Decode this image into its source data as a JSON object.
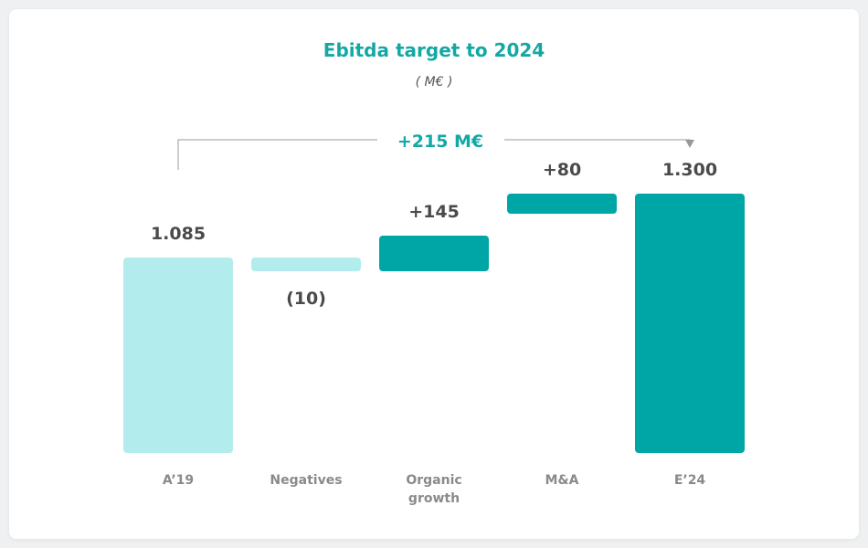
{
  "chart_data": {
    "type": "bar",
    "subtype": "waterfall",
    "title": "Ebitda target to 2024",
    "subtitle": "( M€ )",
    "total_change_label": "+215 M€",
    "categories": [
      "A’19",
      "Negatives",
      "Organic growth",
      "M&A",
      "E’24"
    ],
    "category_label_lines": [
      [
        "A’19"
      ],
      [
        "Negatives"
      ],
      [
        "Organic",
        "growth"
      ],
      [
        "M&A"
      ],
      [
        "E’24"
      ]
    ],
    "values": [
      1085,
      -10,
      145,
      80,
      1300
    ],
    "bar_kinds": [
      "total",
      "delta",
      "delta",
      "delta",
      "total"
    ],
    "value_labels": [
      "1.085",
      "(10)",
      "+145",
      "+80",
      "1.300"
    ],
    "ylim": [
      0,
      1350
    ],
    "grid": false,
    "colors": {
      "light": "#b3ecec",
      "dark": "#00a6a6",
      "accent_text": "#14a8a5",
      "value_text": "#4a4a4a",
      "category_text": "#8a8a8a",
      "bracket": "#999999"
    },
    "bar_colors": [
      "light",
      "light",
      "dark",
      "dark",
      "dark"
    ]
  }
}
